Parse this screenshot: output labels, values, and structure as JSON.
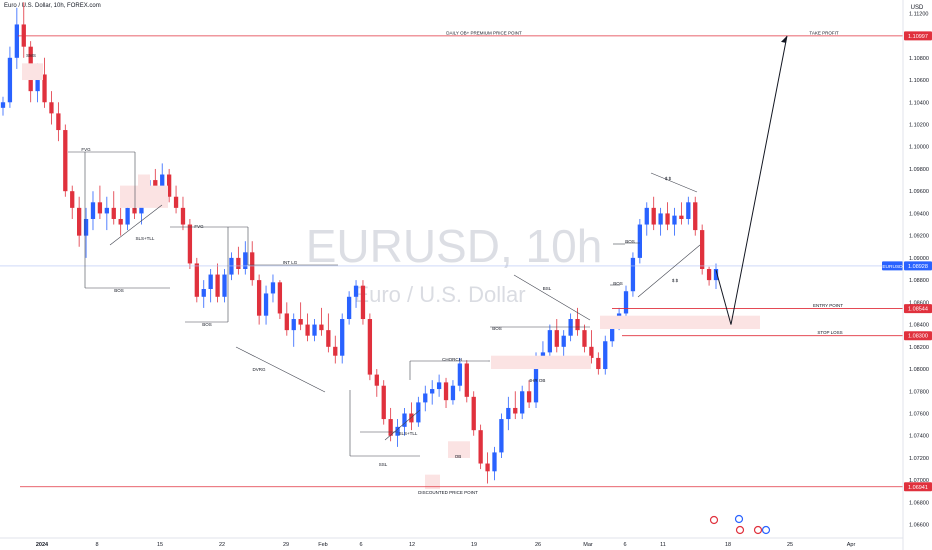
{
  "header": {
    "symbol_line": "Euro / U.S. Dollar, 10h, FOREX.com"
  },
  "axis": {
    "currency": "USD"
  },
  "watermark": {
    "symbol": "EURUSD, 10h",
    "description": "Euro / U.S. Dollar"
  },
  "colors": {
    "up": "#2962ff",
    "down": "#e0313d",
    "line": "#e0313d",
    "zone": "#fbe3e3",
    "price_tag": "#e0313d",
    "current_tag": "#2962ff"
  },
  "chart_data": {
    "type": "candlestick",
    "symbol": "EURUSD",
    "timeframe": "10h",
    "ylim": [
      1.0648,
      1.1132
    ],
    "y_ticks": [
      "1.11200",
      "1.11000",
      "1.10800",
      "1.10600",
      "1.10400",
      "1.10200",
      "1.10000",
      "1.09800",
      "1.09600",
      "1.09400",
      "1.09200",
      "1.09000",
      "1.08800",
      "1.08600",
      "1.08400",
      "1.08200",
      "1.08000",
      "1.07800",
      "1.07600",
      "1.07400",
      "1.07200",
      "1.07000",
      "1.06800",
      "1.06600"
    ],
    "x_ticks": [
      "2024",
      "8",
      "15",
      "22",
      "29",
      "Feb",
      "6",
      "12",
      "19",
      "26",
      "Mar",
      "6",
      "11",
      "18",
      "25",
      "Apr"
    ],
    "current_price": "1.08928",
    "current_label": "EURUSD",
    "levels": [
      {
        "label": "DAILY OB+ PREMIUM PRICE POINT",
        "price": "1.10997",
        "value": 1.10997
      },
      {
        "label": "TAKE PROFIT",
        "value": 1.10997
      },
      {
        "label": "ENTRY POINT",
        "price": "1.08544",
        "value": 1.08544
      },
      {
        "label": "STOP LOSS",
        "price": "1.08300",
        "value": 1.083
      },
      {
        "label": "DISCOUNTED PRICE POINT",
        "price": "1.06941",
        "value": 1.06941
      }
    ],
    "annotations": [
      "SMS",
      "FVG",
      "SLS+TLL",
      "FVG",
      "BOS",
      "BOS",
      "INT LG",
      "DVRG",
      "CHORCH",
      "4HR OB",
      "BSL",
      "BOS",
      "BOS",
      "BOS",
      "$ $",
      "$ $",
      "SSL",
      "SLS+TLL",
      "OB"
    ],
    "ohlc": [
      [
        1.1035,
        1.1045,
        1.1028,
        1.104
      ],
      [
        1.104,
        1.109,
        1.1035,
        1.108
      ],
      [
        1.108,
        1.1125,
        1.107,
        1.111
      ],
      [
        1.111,
        1.113,
        1.108,
        1.109
      ],
      [
        1.109,
        1.1095,
        1.104,
        1.105
      ],
      [
        1.105,
        1.1075,
        1.104,
        1.1065
      ],
      [
        1.1065,
        1.108,
        1.1035,
        1.104
      ],
      [
        1.104,
        1.105,
        1.102,
        1.103
      ],
      [
        1.103,
        1.104,
        1.1005,
        1.1015
      ],
      [
        1.1015,
        1.102,
        1.0955,
        1.096
      ],
      [
        1.096,
        1.0965,
        1.0935,
        1.0945
      ],
      [
        1.0945,
        1.0955,
        1.091,
        1.092
      ],
      [
        1.092,
        1.0945,
        1.09,
        1.0935
      ],
      [
        1.0935,
        1.096,
        1.0925,
        1.095
      ],
      [
        1.095,
        1.0965,
        1.0935,
        1.094
      ],
      [
        1.094,
        1.0955,
        1.0925,
        1.0945
      ],
      [
        1.0945,
        1.096,
        1.093,
        1.0935
      ],
      [
        1.0935,
        1.0945,
        1.092,
        1.093
      ],
      [
        1.093,
        1.095,
        1.0925,
        1.0945
      ],
      [
        1.0945,
        1.096,
        1.0935,
        1.094
      ],
      [
        1.094,
        1.0965,
        1.093,
        1.0955
      ],
      [
        1.0955,
        1.0975,
        1.095,
        1.097
      ],
      [
        1.097,
        1.098,
        1.0955,
        1.096
      ],
      [
        1.096,
        1.0985,
        1.0955,
        1.0975
      ],
      [
        1.0975,
        1.098,
        1.095,
        1.0955
      ],
      [
        1.0955,
        1.0965,
        1.094,
        1.0945
      ],
      [
        1.0945,
        1.0955,
        1.0925,
        1.093
      ],
      [
        1.093,
        1.0935,
        1.089,
        1.0895
      ],
      [
        1.0895,
        1.09,
        1.086,
        1.0865
      ],
      [
        1.0865,
        1.088,
        1.0855,
        1.0872
      ],
      [
        1.0872,
        1.089,
        1.086,
        1.0885
      ],
      [
        1.0885,
        1.0895,
        1.086,
        1.0865
      ],
      [
        1.0865,
        1.089,
        1.086,
        1.0885
      ],
      [
        1.0885,
        1.0905,
        1.088,
        1.09
      ],
      [
        1.09,
        1.091,
        1.0885,
        1.089
      ],
      [
        1.089,
        1.0915,
        1.0885,
        1.0905
      ],
      [
        1.0905,
        1.0915,
        1.0875,
        1.088
      ],
      [
        1.088,
        1.0885,
        1.084,
        1.0848
      ],
      [
        1.0848,
        1.0875,
        1.084,
        1.0868
      ],
      [
        1.0868,
        1.0885,
        1.086,
        1.0878
      ],
      [
        1.0878,
        1.088,
        1.0845,
        1.085
      ],
      [
        1.085,
        1.086,
        1.083,
        1.0835
      ],
      [
        1.0835,
        1.085,
        1.082,
        1.0845
      ],
      [
        1.0845,
        1.086,
        1.0835,
        1.084
      ],
      [
        1.084,
        1.085,
        1.0825,
        1.083
      ],
      [
        1.083,
        1.0845,
        1.0825,
        1.084
      ],
      [
        1.084,
        1.0855,
        1.083,
        1.0835
      ],
      [
        1.0835,
        1.085,
        1.0815,
        1.082
      ],
      [
        1.082,
        1.083,
        1.0805,
        1.0812
      ],
      [
        1.0812,
        1.085,
        1.0805,
        1.0845
      ],
      [
        1.0845,
        1.087,
        1.084,
        1.0865
      ],
      [
        1.0865,
        1.088,
        1.0855,
        1.0875
      ],
      [
        1.0875,
        1.088,
        1.084,
        1.0845
      ],
      [
        1.0845,
        1.085,
        1.079,
        1.0795
      ],
      [
        1.0795,
        1.08,
        1.0775,
        1.0785
      ],
      [
        1.0785,
        1.079,
        1.075,
        1.0755
      ],
      [
        1.0755,
        1.0765,
        1.0735,
        1.074
      ],
      [
        1.074,
        1.0755,
        1.073,
        1.0748
      ],
      [
        1.0748,
        1.0765,
        1.074,
        1.076
      ],
      [
        1.076,
        1.077,
        1.0745,
        1.0752
      ],
      [
        1.0752,
        1.0775,
        1.0748,
        1.077
      ],
      [
        1.077,
        1.0785,
        1.0762,
        1.0778
      ],
      [
        1.0778,
        1.079,
        1.0768,
        1.0782
      ],
      [
        1.0782,
        1.0795,
        1.0775,
        1.0788
      ],
      [
        1.0788,
        1.0792,
        1.0765,
        1.0772
      ],
      [
        1.0772,
        1.079,
        1.0768,
        1.0785
      ],
      [
        1.0785,
        1.081,
        1.078,
        1.0805
      ],
      [
        1.0805,
        1.0808,
        1.077,
        1.0775
      ],
      [
        1.0775,
        1.078,
        1.074,
        1.0745
      ],
      [
        1.0745,
        1.075,
        1.071,
        1.0715
      ],
      [
        1.0715,
        1.0725,
        1.0697,
        1.0708
      ],
      [
        1.0708,
        1.073,
        1.07,
        1.0725
      ],
      [
        1.0725,
        1.076,
        1.072,
        1.0755
      ],
      [
        1.0755,
        1.0775,
        1.0745,
        1.0765
      ],
      [
        1.0765,
        1.078,
        1.0755,
        1.076
      ],
      [
        1.076,
        1.0785,
        1.0755,
        1.078
      ],
      [
        1.078,
        1.079,
        1.0765,
        1.077
      ],
      [
        1.077,
        1.0815,
        1.0765,
        1.081
      ],
      [
        1.081,
        1.0825,
        1.08,
        1.0815
      ],
      [
        1.0815,
        1.084,
        1.081,
        1.0835
      ],
      [
        1.0835,
        1.0845,
        1.0815,
        1.082
      ],
      [
        1.082,
        1.0835,
        1.081,
        1.083
      ],
      [
        1.083,
        1.085,
        1.0825,
        1.0845
      ],
      [
        1.0845,
        1.0855,
        1.083,
        1.0835
      ],
      [
        1.0835,
        1.084,
        1.0815,
        1.082
      ],
      [
        1.082,
        1.0835,
        1.0805,
        1.081
      ],
      [
        1.081,
        1.0815,
        1.0795,
        1.08
      ],
      [
        1.08,
        1.083,
        1.0795,
        1.0825
      ],
      [
        1.0825,
        1.0845,
        1.082,
        1.084
      ],
      [
        1.084,
        1.0855,
        1.0835,
        1.085
      ],
      [
        1.085,
        1.0875,
        1.0845,
        1.087
      ],
      [
        1.087,
        1.0905,
        1.0865,
        1.09
      ],
      [
        1.09,
        1.0935,
        1.0895,
        1.093
      ],
      [
        1.093,
        1.095,
        1.092,
        1.0945
      ],
      [
        1.0945,
        1.0955,
        1.0925,
        1.093
      ],
      [
        1.093,
        1.0945,
        1.092,
        1.094
      ],
      [
        1.094,
        1.095,
        1.0925,
        1.093
      ],
      [
        1.093,
        1.0945,
        1.092,
        1.0938
      ],
      [
        1.0938,
        1.095,
        1.093,
        1.0935
      ],
      [
        1.0935,
        1.0955,
        1.093,
        1.095
      ],
      [
        1.095,
        1.0955,
        1.092,
        1.0925
      ],
      [
        1.0925,
        1.093,
        1.0885,
        1.089
      ],
      [
        1.089,
        1.0892,
        1.0875,
        1.088
      ],
      [
        1.088,
        1.0895,
        1.0872,
        1.089
      ]
    ]
  }
}
